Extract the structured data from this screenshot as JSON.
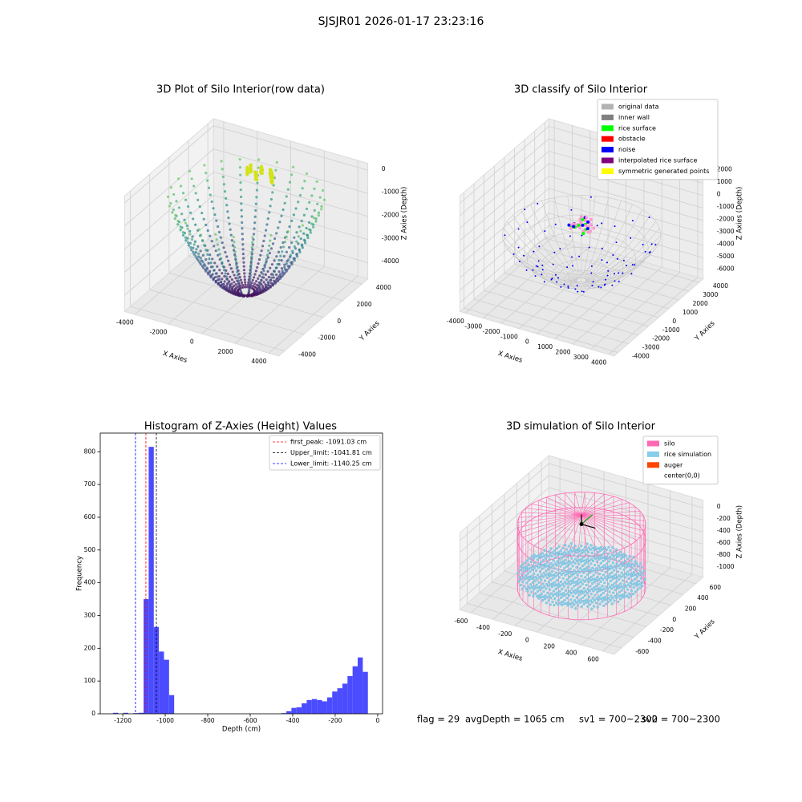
{
  "title": "SJSJR01 2026-01-17 23:23:16",
  "status": [
    "flag = 29",
    "avgDepth = 1065 cm",
    "sv1 = 700~2300",
    "sv2 = 700~2300"
  ],
  "chart_data": [
    {
      "type": "scatter3d",
      "title": "3D Plot of Silo Interior(row data)",
      "xlabel": "X Axies",
      "ylabel": "Y Axies",
      "zlabel": "Z Axies (Depth)",
      "xlim": [
        -4600,
        4600
      ],
      "ylim": [
        -4600,
        4600
      ],
      "zlim": [
        -4700,
        300
      ],
      "xticks": [
        -4000,
        -2000,
        0,
        2000,
        4000
      ],
      "yticks": [
        -4000,
        -2000,
        0,
        2000,
        4000
      ],
      "zticks": [
        0,
        -1000,
        -2000,
        -3000,
        -4000
      ],
      "colormap": "viridis",
      "grid": true
    },
    {
      "type": "classify3d",
      "title": "3D classify of Silo Interior",
      "xlabel": "X Axies",
      "ylabel": "Y Axies",
      "zlabel": "Z Axies (Depth)",
      "xlim": [
        -4300,
        4300
      ],
      "ylim": [
        -4400,
        4400
      ],
      "zlim": [
        -6700,
        2600
      ],
      "xticks": [
        -4000,
        -3000,
        -2000,
        -1000,
        0,
        1000,
        2000,
        3000,
        4000
      ],
      "yticks": [
        -4000,
        -3000,
        -2000,
        -1000,
        0,
        1000,
        2000,
        3000,
        4000
      ],
      "zticks": [
        2000,
        1000,
        0,
        -1000,
        -2000,
        -3000,
        -4000,
        -5000,
        -6000
      ],
      "grid": true,
      "legend": [
        {
          "name": "original data",
          "color": "#b3b3b3"
        },
        {
          "name": "inner wall",
          "color": "#808080"
        },
        {
          "name": "rice surface",
          "color": "#00ff00"
        },
        {
          "name": "obstacle",
          "color": "#ff0000"
        },
        {
          "name": "noise",
          "color": "#0000ff"
        },
        {
          "name": "interpolated rice surface",
          "color": "#800080"
        },
        {
          "name": "symmetric generated points",
          "color": "#ffff00"
        }
      ]
    },
    {
      "type": "histogram",
      "title": "Histogram of Z-Axies (Height) Values",
      "xlabel": "Depth (cm)",
      "ylabel": "Frequency",
      "color": "#4b4bff",
      "bins": [
        -1246,
        -1222,
        -1198,
        -1174,
        -1150,
        -1126,
        -1102,
        -1078,
        -1054,
        -1030,
        -1006,
        -982,
        -958,
        -934,
        -910,
        -886,
        -862,
        -838,
        -814,
        -790,
        -766,
        -742,
        -718,
        -694,
        -670,
        -646,
        -622,
        -598,
        -574,
        -550,
        -526,
        -502,
        -478,
        -454,
        -430,
        -406,
        -382,
        -358,
        -334,
        -310,
        -286,
        -262,
        -238,
        -214,
        -190,
        -166,
        -142,
        -118,
        -94,
        -70,
        -46
      ],
      "values": [
        3,
        0,
        3,
        0,
        2,
        3,
        350,
        815,
        265,
        190,
        165,
        57,
        0,
        0,
        0,
        0,
        0,
        0,
        0,
        0,
        0,
        0,
        0,
        0,
        0,
        0,
        0,
        0,
        0,
        0,
        0,
        0,
        0,
        2,
        8,
        18,
        20,
        32,
        42,
        45,
        42,
        38,
        50,
        68,
        78,
        92,
        115,
        145,
        172,
        128
      ],
      "xlim": [
        -1306,
        23
      ],
      "ylim": [
        0,
        857
      ],
      "xticks": [
        -1200,
        -1000,
        -800,
        -600,
        -400,
        -200,
        0
      ],
      "yticks": [
        0,
        100,
        200,
        300,
        400,
        500,
        600,
        700,
        800
      ],
      "vlines": [
        {
          "name": "first_peak: -1091.03 cm",
          "value": -1091.03,
          "color": "#ff0000"
        },
        {
          "name": "Upper_limit: -1041.81 cm",
          "value": -1041.81,
          "color": "#000000"
        },
        {
          "name": "Lower_limit: -1140.25 cm",
          "value": -1140.25,
          "color": "#0000ff"
        }
      ]
    },
    {
      "type": "surface3d",
      "title": "3D simulation of Silo Interior",
      "xlabel": "X Axies",
      "ylabel": "Y Axies",
      "zlabel": "Z Axies (Depth)",
      "xlim": [
        -700,
        700
      ],
      "ylim": [
        -720,
        720
      ],
      "zlim": [
        -1150,
        130
      ],
      "xticks": [
        -600,
        -400,
        -200,
        0,
        200,
        400,
        600
      ],
      "yticks": [
        -600,
        -400,
        -200,
        0,
        200,
        400,
        600
      ],
      "zticks": [
        0,
        -200,
        -400,
        -600,
        -800,
        -1000
      ],
      "grid": true,
      "legend": [
        {
          "name": "silo",
          "color": "#ff69b4"
        },
        {
          "name": "rice simulation",
          "color": "#87ceeb"
        },
        {
          "name": "auger",
          "color": "#ff4500"
        },
        {
          "name": "center(0,0)",
          "color": "#ffffff"
        }
      ]
    }
  ]
}
